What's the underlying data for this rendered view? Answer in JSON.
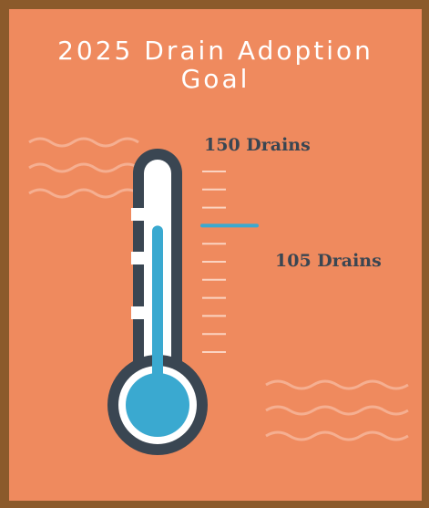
{
  "title_line1": "2025 Drain Adoption",
  "title_line2": "Goal",
  "goal": {
    "label": "150 Drains",
    "value": 150
  },
  "current": {
    "label": "105 Drains",
    "value": 105
  },
  "colors": {
    "frame": "#8b5a2b",
    "panel": "#ef8a5e",
    "mercury": "#3aa9d0",
    "outline": "#3a4652",
    "text": "#ffffff",
    "label": "#3a4652"
  }
}
